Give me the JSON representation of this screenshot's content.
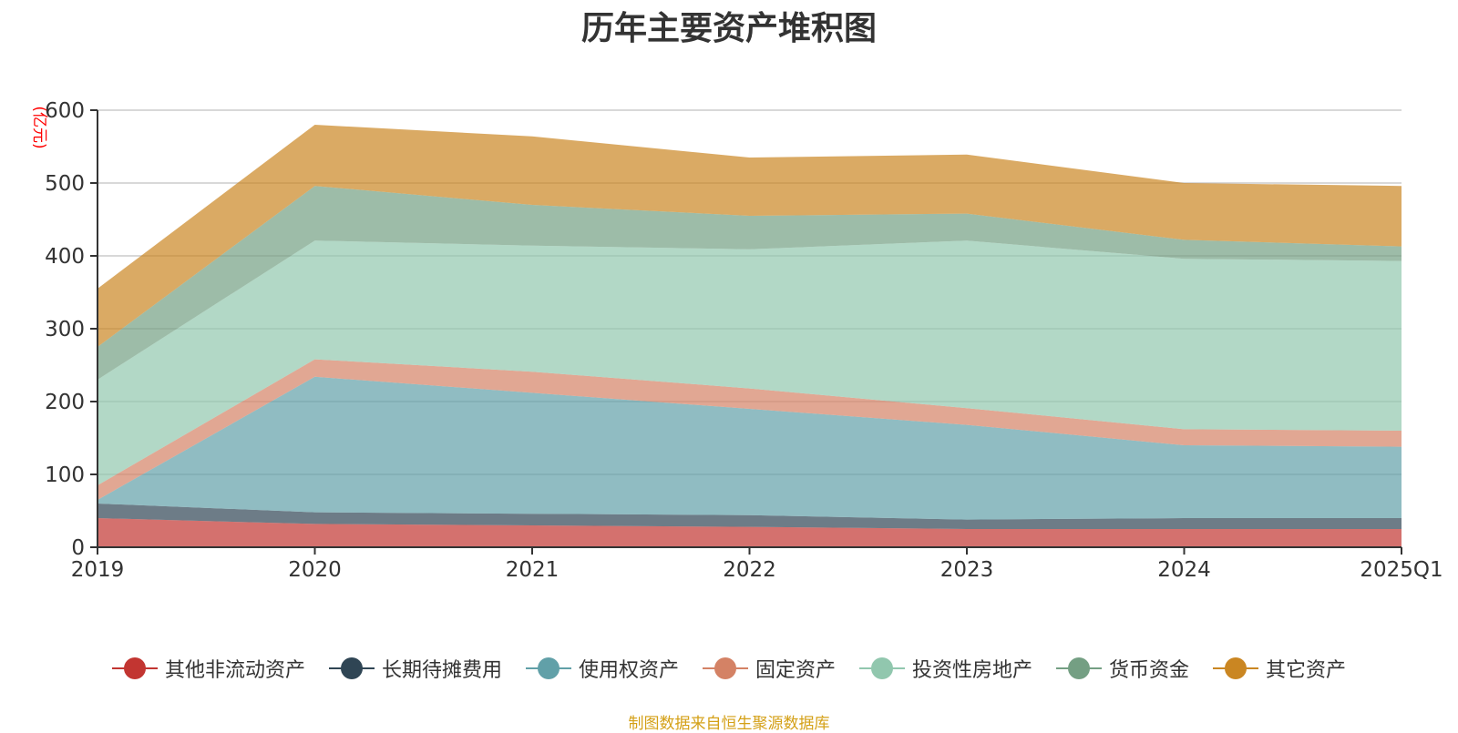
{
  "title": "历年主要资产堆积图",
  "source": "制图数据来自恒生聚源数据库",
  "chart_data": {
    "type": "area",
    "stacked": true,
    "title": "历年主要资产堆积图",
    "ylabel": "(亿元)",
    "ylim": [
      0,
      600
    ],
    "yticks": [
      0,
      100,
      200,
      300,
      400,
      500,
      600
    ],
    "grid": true,
    "legend_position": "bottom",
    "categories": [
      "2019",
      "2020",
      "2021",
      "2022",
      "2023",
      "2024",
      "2025Q1"
    ],
    "series": [
      {
        "name": "其他非流动资产",
        "color": "#c23531",
        "values": [
          40,
          32,
          30,
          28,
          25,
          25,
          25
        ]
      },
      {
        "name": "长期待摊费用",
        "color": "#2f4554",
        "values": [
          20,
          16,
          16,
          16,
          13,
          15,
          15
        ]
      },
      {
        "name": "使用权资产",
        "color": "#61a0a8",
        "values": [
          5,
          186,
          166,
          146,
          130,
          100,
          98
        ]
      },
      {
        "name": "固定资产",
        "color": "#d48265",
        "values": [
          20,
          24,
          29,
          28,
          23,
          22,
          22
        ]
      },
      {
        "name": "投资性房地产",
        "color": "#91c7ae",
        "values": [
          145,
          163,
          173,
          191,
          230,
          234,
          233
        ]
      },
      {
        "name": "货币资金",
        "color": "#749f83",
        "values": [
          45,
          75,
          56,
          46,
          37,
          26,
          20
        ]
      },
      {
        "name": "其它资产",
        "color": "#ca8622",
        "values": [
          80,
          84,
          94,
          80,
          81,
          78,
          83
        ]
      }
    ]
  }
}
